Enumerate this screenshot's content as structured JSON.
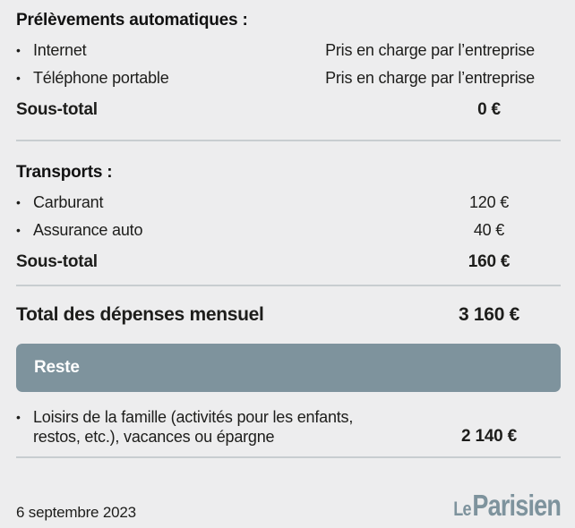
{
  "glyphs": {
    "bullet": "•"
  },
  "colors": {
    "background": "#ededee",
    "banner": "#7e939d",
    "divider": "#c8cdd0",
    "text": "#1d1d1b",
    "logo": "#7e939d"
  },
  "sections": [
    {
      "heading": "Prélèvements automatiques :",
      "items": [
        {
          "label": "Internet",
          "value": "Pris en charge par l’entreprise"
        },
        {
          "label": "Téléphone portable",
          "value": "Pris en charge par l’entreprise"
        }
      ],
      "subtotal_label": "Sous-total",
      "subtotal_value": "0 €"
    },
    {
      "heading": "Transports :",
      "items": [
        {
          "label": "Carburant",
          "value": "120 €"
        },
        {
          "label": "Assurance auto",
          "value": "40 €"
        }
      ],
      "subtotal_label": "Sous-total",
      "subtotal_value": "160 €"
    }
  ],
  "total": {
    "label": "Total des dépenses mensuel",
    "value": "3 160 €"
  },
  "reste": {
    "banner_label": "Reste",
    "item_label": "Loisirs de la famille (activités pour les enfants, restos, etc.), vacances ou épargne",
    "item_value": "2 140 €"
  },
  "footer": {
    "date": "6 septembre 2023",
    "logo_le": "Le",
    "logo_parisien": "Parisien"
  }
}
